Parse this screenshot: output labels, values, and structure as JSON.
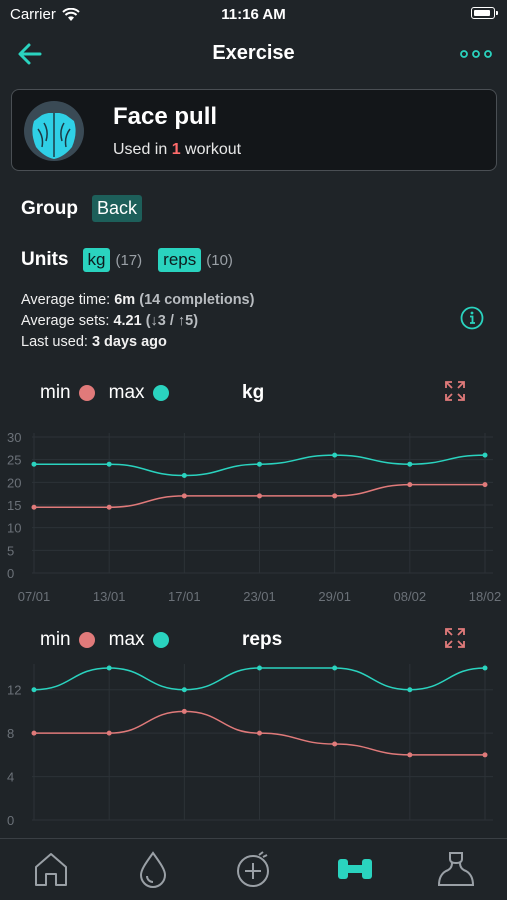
{
  "status_bar": {
    "carrier": "Carrier",
    "time": "11:16 AM"
  },
  "nav": {
    "title": "Exercise"
  },
  "exercise": {
    "name": "Face pull",
    "usage_prefix": "Used in ",
    "usage_count": "1",
    "usage_suffix": " workout"
  },
  "group": {
    "label": "Group",
    "value": "Back"
  },
  "units": {
    "label": "Units",
    "items": [
      {
        "name": "kg",
        "count": "(17)"
      },
      {
        "name": "reps",
        "count": "(10)"
      }
    ]
  },
  "stats": {
    "avg_time_label": "Average time: ",
    "avg_time_value": "6m",
    "avg_time_extra": "(14 completions)",
    "avg_sets_label": "Average sets: ",
    "avg_sets_value": "4.21",
    "avg_sets_extra": "(↓3 / ↑5)",
    "last_used_label": "Last used: ",
    "last_used_value": "3 days ago"
  },
  "colors": {
    "min": "#e07a7a",
    "max": "#2ad3bf",
    "accent": "#2ad3bf"
  },
  "chart_data": [
    {
      "type": "line",
      "title": "kg",
      "legend": [
        "min",
        "max"
      ],
      "x": [
        "07/01",
        "13/01",
        "17/01",
        "23/01",
        "29/01",
        "08/02",
        "18/02"
      ],
      "ylim": [
        0,
        30
      ],
      "yticks": [
        0,
        5,
        10,
        15,
        20,
        25,
        30
      ],
      "series": [
        {
          "name": "min",
          "values": [
            14.5,
            14.5,
            17,
            17,
            17,
            19.5,
            19.5
          ]
        },
        {
          "name": "max",
          "values": [
            24,
            24,
            21.5,
            24,
            26,
            24,
            26
          ]
        }
      ]
    },
    {
      "type": "line",
      "title": "reps",
      "legend": [
        "min",
        "max"
      ],
      "x": [
        "07/01",
        "13/01",
        "17/01",
        "23/01",
        "29/01",
        "08/02",
        "18/02"
      ],
      "ylim": [
        0,
        14
      ],
      "yticks": [
        0,
        4,
        8,
        12
      ],
      "series": [
        {
          "name": "min",
          "values": [
            8,
            8,
            10,
            8,
            7,
            6,
            6
          ]
        },
        {
          "name": "max",
          "values": [
            12,
            14,
            12,
            14,
            14,
            12,
            14
          ]
        }
      ]
    }
  ]
}
